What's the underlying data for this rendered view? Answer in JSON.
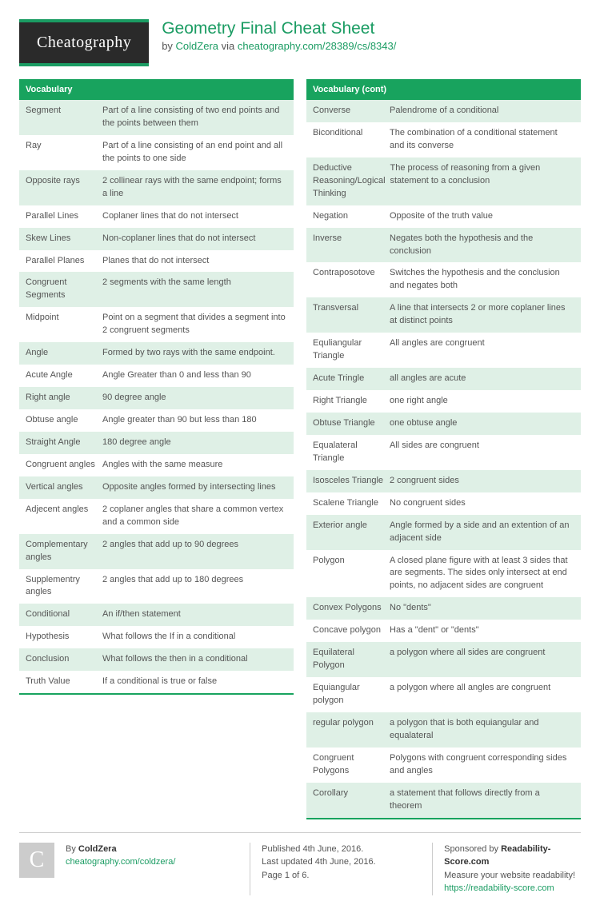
{
  "header": {
    "logo": "Cheatography",
    "title": "Geometry Final Cheat Sheet",
    "by_prefix": "by ",
    "author": "ColdZera",
    "via_text": " via ",
    "url": "cheatography.com/28389/cs/8343/"
  },
  "left": {
    "title": "Vocabulary",
    "rows": [
      {
        "term": "Segment",
        "def": "Part of a line consisting of two end points and the points between them"
      },
      {
        "term": "Ray",
        "def": "Part of a line consisting of an end point and all the points to one side"
      },
      {
        "term": "Opposite rays",
        "def": "2 collinear rays with the same endpoint; forms a line"
      },
      {
        "term": "Parallel Lines",
        "def": "Coplaner lines that do not intersect"
      },
      {
        "term": "Skew Lines",
        "def": "Non-coplaner lines that do not intersect"
      },
      {
        "term": "Parallel Planes",
        "def": "Planes that do not intersect"
      },
      {
        "term": "Congruent Segments",
        "def": "2 segments with the same length"
      },
      {
        "term": "Midpoint",
        "def": "Point on a segment that divides a segment into 2 congruent segments"
      },
      {
        "term": "Angle",
        "def": "Formed by two rays with the same endpoint."
      },
      {
        "term": "Acute Angle",
        "def": "Angle Greater than 0 and less than 90"
      },
      {
        "term": "Right angle",
        "def": "90 degree angle"
      },
      {
        "term": "Obtuse angle",
        "def": "Angle greater than 90 but less than 180"
      },
      {
        "term": "Straight Angle",
        "def": "180 degree angle"
      },
      {
        "term": "Congruent angles",
        "def": "Angles with the same measure"
      },
      {
        "term": "Vertical angles",
        "def": "Opposite angles formed by intersecting lines"
      },
      {
        "term": "Adjecent angles",
        "def": "2 coplaner angles that share a common vertex and a common side"
      },
      {
        "term": "Complementary angles",
        "def": "2 angles that add up to 90 degrees"
      },
      {
        "term": "Supplementry angles",
        "def": "2 angles that add up to 180 degrees"
      },
      {
        "term": "Conditional",
        "def": "An if/then statement"
      },
      {
        "term": "Hypothesis",
        "def": "What follows the If in a conditional"
      },
      {
        "term": "Conclusion",
        "def": "What follows the then in a conditional"
      },
      {
        "term": "Truth Value",
        "def": "If a conditional is true or false"
      }
    ]
  },
  "right": {
    "title": "Vocabulary (cont)",
    "rows": [
      {
        "term": "Converse",
        "def": "Palendrome of a conditional"
      },
      {
        "term": "Biconditional",
        "def": "The combination of a conditional statement and its converse"
      },
      {
        "term": "Deductive Reasoning/Logical Thinking",
        "def": "The process of reasoning from a given statement to a conclusion"
      },
      {
        "term": "Negation",
        "def": "Opposite of the truth value"
      },
      {
        "term": "Inverse",
        "def": "Negates both the hypothesis and the conclusion"
      },
      {
        "term": "Contraposotove",
        "def": "Switches the hypothesis and the conclusion and negates both"
      },
      {
        "term": "Transversal",
        "def": "A line that intersects 2 or more coplaner lines at distinct points"
      },
      {
        "term": "Equliangular Triangle",
        "def": "All angles are congruent"
      },
      {
        "term": "Acute Tringle",
        "def": "all angles are acute"
      },
      {
        "term": "Right Triangle",
        "def": "one right angle"
      },
      {
        "term": "Obtuse Triangle",
        "def": "one obtuse angle"
      },
      {
        "term": "Equalateral Triangle",
        "def": "All sides are congruent"
      },
      {
        "term": "Isosceles Triangle",
        "def": "2 congruent sides"
      },
      {
        "term": "Scalene Triangle",
        "def": "No congruent sides"
      },
      {
        "term": "Exterior angle",
        "def": "Angle formed by a side and an extention of an adjacent side"
      },
      {
        "term": "Polygon",
        "def": "A closed plane figure with at least 3 sides that are segments. The sides only intersect at end points, no adjacent sides are congruent"
      },
      {
        "term": "Convex Polygons",
        "def": "No \"dents\""
      },
      {
        "term": "Concave polygon",
        "def": "Has a \"dent\" or \"dents\""
      },
      {
        "term": "Equilateral Polygon",
        "def": "a polygon where all sides are congruent"
      },
      {
        "term": "Equiangular polygon",
        "def": "a polygon where all angles are congruent"
      },
      {
        "term": "regular polygon",
        "def": "a polygon that is both equiangular and equalateral"
      },
      {
        "term": "Congruent Polygons",
        "def": "Polygons with congruent corresponding sides and angles"
      },
      {
        "term": "Corollary",
        "def": "a statement that follows directly from a theorem"
      }
    ]
  },
  "footer": {
    "avatar_letter": "C",
    "by_label": "By ",
    "author": "ColdZera",
    "author_url": "cheatography.com/coldzera/",
    "published": "Published 4th June, 2016.",
    "updated": "Last updated 4th June, 2016.",
    "page": "Page 1 of 6.",
    "sponsor_prefix": "Sponsored by ",
    "sponsor_name": "Readability-Score.com",
    "sponsor_tag": "Measure your website readability!",
    "sponsor_url": "https://readability-score.com"
  }
}
